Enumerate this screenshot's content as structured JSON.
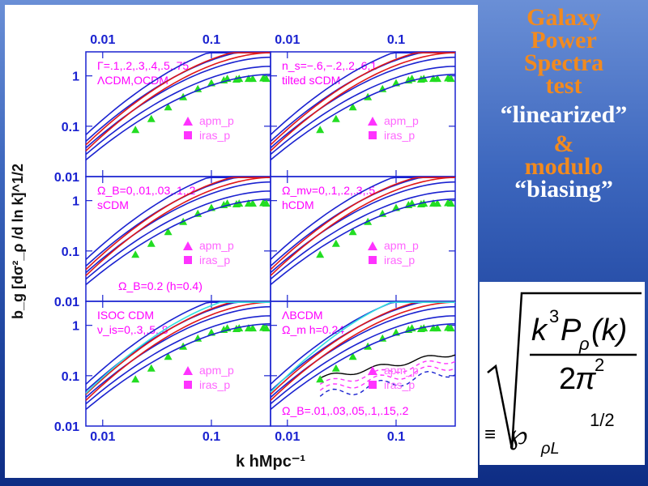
{
  "sidebar": {
    "lines": [
      {
        "text": "Galaxy",
        "color": "orange"
      },
      {
        "text": "Power",
        "color": "orange"
      },
      {
        "text": "Spectra",
        "color": "orange"
      },
      {
        "text": "test",
        "color": "orange"
      },
      {
        "text": "“linearized”",
        "color": "white"
      },
      {
        "text": "&",
        "color": "orange"
      },
      {
        "text": "modulo",
        "color": "orange"
      },
      {
        "text": "“biasing”",
        "color": "white"
      }
    ]
  },
  "formula": {
    "k3": "k",
    "exp3": "3",
    "P": "P",
    "rho": "ρ",
    "arg": "(k)",
    "den2": "2",
    "pi": "π",
    "exp2": "2",
    "equiv": "≡",
    "wp": "℘",
    "sub": "ρL",
    "half": "1/2"
  },
  "chart_data": {
    "type": "line",
    "xlabel": "k hMpc⁻¹",
    "ylabel": "b_g [dσ²_ρ /d ln k]^1/2",
    "x_scale": "log",
    "y_scale": "log",
    "xlim": [
      0.007,
      0.35
    ],
    "ylim": [
      0.01,
      3
    ],
    "top_ticks": [
      "0.01",
      "0.1"
    ],
    "bottom_ticks": [
      "0.01",
      "0.1"
    ],
    "y_ticks": [
      "1",
      "0.1",
      "0.01"
    ],
    "marker_legend": [
      {
        "label": "apm_p",
        "marker": "triangle",
        "color": "#ff33ff"
      },
      {
        "label": "iras_p",
        "marker": "square",
        "color": "#ff33ff"
      }
    ],
    "panels": [
      {
        "label1": "Γ=.1,.2,.3,.4,.5,.75",
        "label2": "ΛCDM,OCDM",
        "label3": "",
        "curves": [
          {
            "color": "#1a22d0",
            "x": [
              0.007,
              0.35
            ],
            "y": [
              0.05,
              2.5
            ]
          }
        ]
      },
      {
        "label1": "n_s=−.6,−.2,.2,.6,1",
        "label2": "tilted sCDM",
        "label3": "",
        "curves": []
      },
      {
        "label1": "Ω_B=0,.01,.03,.1,.2",
        "label2": "sCDM",
        "label3": "Ω_B=0.2 (h=0.4)",
        "curves": []
      },
      {
        "label1": "Ω_mν=0,.1,.2,.3,.5",
        "label2": "hCDM",
        "label3": "",
        "curves": []
      },
      {
        "label1": "ISOC CDM",
        "label2": "ν_is=0,.3,.5,.8",
        "label3": "",
        "curves": []
      },
      {
        "label1": "ΛBCDM",
        "label2": "Ω_m h=0.24",
        "label3": "Ω_B=.01,.03,.05,.1,.15,.2",
        "curves": []
      }
    ],
    "apm_points": {
      "x": [
        0.02,
        0.028,
        0.04,
        0.055,
        0.075,
        0.1,
        0.13,
        0.17,
        0.22,
        0.3
      ],
      "y": [
        0.085,
        0.14,
        0.24,
        0.38,
        0.55,
        0.72,
        0.82,
        0.85,
        0.88,
        0.9
      ]
    }
  }
}
